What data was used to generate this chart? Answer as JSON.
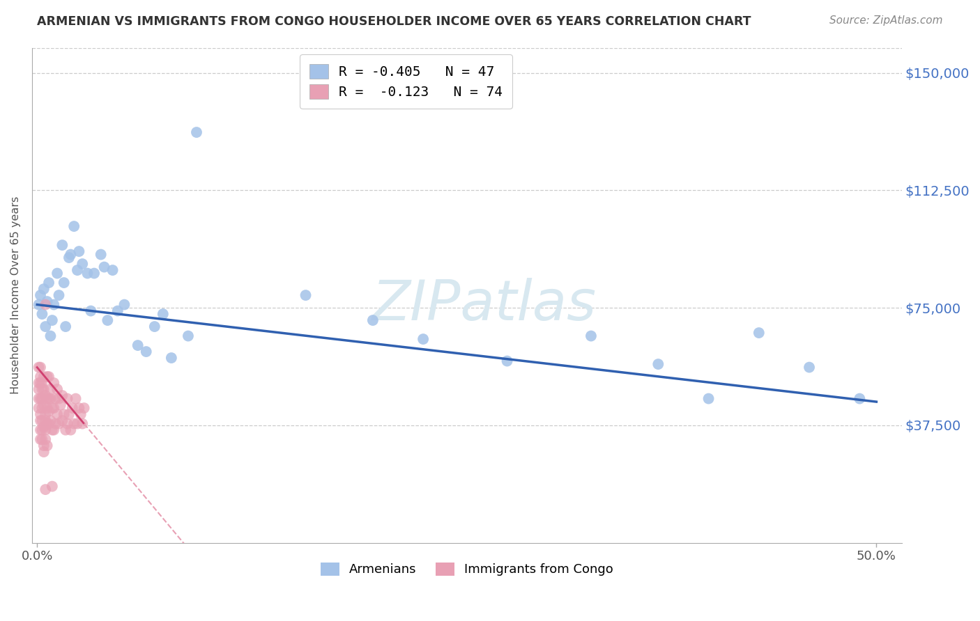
{
  "title": "ARMENIAN VS IMMIGRANTS FROM CONGO HOUSEHOLDER INCOME OVER 65 YEARS CORRELATION CHART",
  "source": "Source: ZipAtlas.com",
  "ylabel": "Householder Income Over 65 years",
  "armenian_color": "#a4c2e8",
  "congo_color": "#e8a0b4",
  "line_armenian_color": "#3060b0",
  "line_congo_color": "#d04070",
  "line_congo_dash_color": "#e8a0b4",
  "background_color": "#ffffff",
  "title_color": "#333333",
  "source_color": "#888888",
  "ytick_color": "#4472c4",
  "xtick_color": "#555555",
  "ylabel_color": "#555555",
  "grid_color": "#cccccc",
  "ylim": [
    0,
    158000
  ],
  "xlim": [
    -0.003,
    0.515
  ],
  "yticks": [
    37500,
    75000,
    112500,
    150000
  ],
  "ytick_labels": [
    "$37,500",
    "$75,000",
    "$112,500",
    "$150,000"
  ],
  "xtick_vals": [
    0.0,
    0.5
  ],
  "xtick_labels": [
    "0.0%",
    "50.0%"
  ],
  "armenian_x": [
    0.001,
    0.002,
    0.003,
    0.004,
    0.005,
    0.006,
    0.007,
    0.008,
    0.009,
    0.01,
    0.012,
    0.013,
    0.015,
    0.016,
    0.017,
    0.019,
    0.02,
    0.022,
    0.024,
    0.025,
    0.027,
    0.03,
    0.032,
    0.034,
    0.038,
    0.04,
    0.042,
    0.045,
    0.048,
    0.052,
    0.06,
    0.065,
    0.07,
    0.075,
    0.08,
    0.09,
    0.095,
    0.16,
    0.2,
    0.23,
    0.28,
    0.33,
    0.37,
    0.4,
    0.43,
    0.46,
    0.49
  ],
  "armenian_y": [
    76000,
    79000,
    73000,
    81000,
    69000,
    77000,
    83000,
    66000,
    71000,
    76000,
    86000,
    79000,
    95000,
    83000,
    69000,
    91000,
    92000,
    101000,
    87000,
    93000,
    89000,
    86000,
    74000,
    86000,
    92000,
    88000,
    71000,
    87000,
    74000,
    76000,
    63000,
    61000,
    69000,
    73000,
    59000,
    66000,
    131000,
    79000,
    71000,
    65000,
    58000,
    66000,
    57000,
    46000,
    67000,
    56000,
    46000
  ],
  "congo_x": [
    0.001,
    0.001,
    0.001,
    0.001,
    0.001,
    0.002,
    0.002,
    0.002,
    0.002,
    0.002,
    0.002,
    0.002,
    0.002,
    0.003,
    0.003,
    0.003,
    0.003,
    0.003,
    0.003,
    0.003,
    0.004,
    0.004,
    0.004,
    0.004,
    0.004,
    0.004,
    0.005,
    0.005,
    0.005,
    0.005,
    0.005,
    0.005,
    0.006,
    0.006,
    0.006,
    0.006,
    0.006,
    0.007,
    0.007,
    0.007,
    0.007,
    0.008,
    0.008,
    0.008,
    0.009,
    0.009,
    0.01,
    0.01,
    0.01,
    0.011,
    0.011,
    0.012,
    0.012,
    0.013,
    0.013,
    0.014,
    0.015,
    0.015,
    0.016,
    0.017,
    0.018,
    0.018,
    0.019,
    0.02,
    0.021,
    0.022,
    0.023,
    0.024,
    0.025,
    0.026,
    0.027,
    0.028,
    0.005,
    0.009
  ],
  "congo_y": [
    56000,
    51000,
    46000,
    49000,
    43000,
    53000,
    39000,
    56000,
    33000,
    51000,
    41000,
    46000,
    36000,
    49000,
    39000,
    43000,
    33000,
    51000,
    36000,
    46000,
    31000,
    49000,
    37000,
    53000,
    29000,
    44000,
    39000,
    47000,
    33000,
    41000,
    36000,
    76000,
    31000,
    46000,
    38000,
    53000,
    43000,
    46000,
    38000,
    53000,
    42000,
    49000,
    39000,
    46000,
    43000,
    36000,
    51000,
    43000,
    36000,
    46000,
    38000,
    49000,
    41000,
    46000,
    38000,
    44000,
    47000,
    39000,
    41000,
    36000,
    46000,
    38000,
    41000,
    36000,
    43000,
    38000,
    46000,
    38000,
    43000,
    41000,
    38000,
    43000,
    17000,
    18000
  ],
  "legend1_label": "R = -0.405   N = 47",
  "legend2_label": "R =  -0.123   N = 74",
  "bottom_legend1": "Armenians",
  "bottom_legend2": "Immigrants from Congo",
  "watermark": "ZIPatlas",
  "watermark_color": "#d8e8f0",
  "congo_line_solid_end": 0.028,
  "congo_line_dash_end": 0.5
}
